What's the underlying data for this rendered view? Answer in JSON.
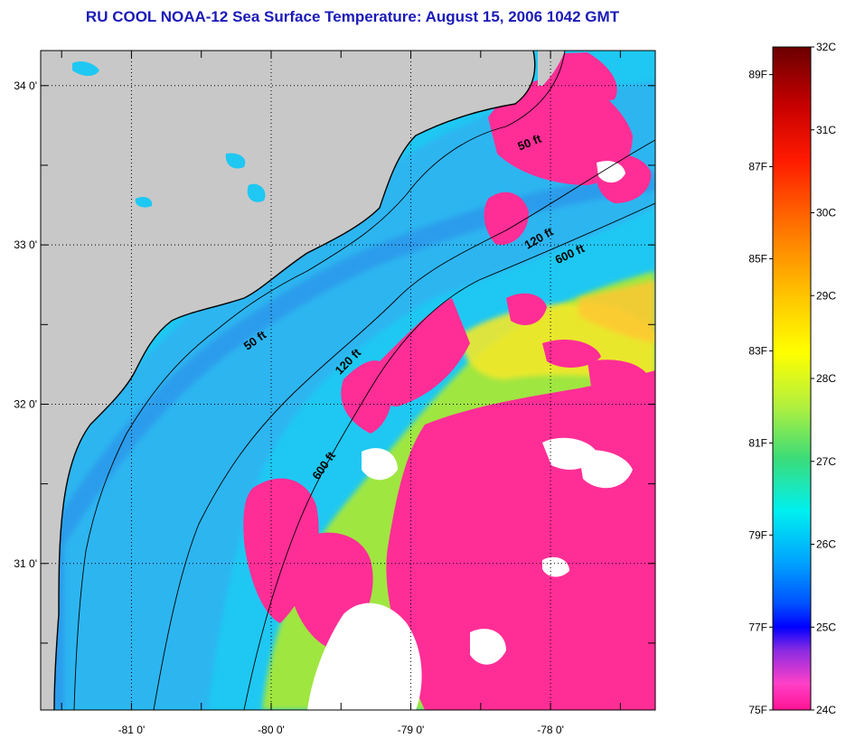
{
  "title": "RU COOL  NOAA-12  Sea Surface Temperature:  August 15, 2006 1042 GMT",
  "map": {
    "lat_labels": [
      "34 0'",
      "33 0'",
      "32 0'",
      "31 0'"
    ],
    "lon_labels": [
      "-81 0'",
      "-80 0'",
      "-79 0'",
      "-78 0'"
    ],
    "lat_values": [
      34,
      33,
      32,
      31
    ],
    "lon_values": [
      -81,
      -80,
      -79,
      -78
    ],
    "lon_range": [
      -81.65,
      -77.25
    ],
    "lat_range": [
      30.08,
      34.22
    ],
    "contours": [
      {
        "label": "50 ft",
        "lon": -78.14,
        "lat": 33.62
      },
      {
        "label": "120 ft",
        "lon": -78.07,
        "lat": 33.02
      },
      {
        "label": "600 ft",
        "lon": -77.85,
        "lat": 32.92
      },
      {
        "label": "50 ft",
        "lon": -80.1,
        "lat": 32.38
      },
      {
        "label": "120 ft",
        "lon": -79.43,
        "lat": 32.25
      },
      {
        "label": "600 ft",
        "lon": -79.6,
        "lat": 31.6
      }
    ],
    "colors": {
      "land": "#c8c8c8",
      "cloud": "#ff2e96",
      "missing": "#ffffff",
      "shelf": "#19c6f5",
      "warm": "#aeea2f"
    }
  },
  "colorbar": {
    "fahrenheit_labels": [
      "89F",
      "87F",
      "85F",
      "83F",
      "81F",
      "79F",
      "77F",
      "75F"
    ],
    "celsius_labels": [
      "32C",
      "31C",
      "30C",
      "29C",
      "28C",
      "27C",
      "26C",
      "25C",
      "24C"
    ],
    "gradient": [
      "#6b0000",
      "#c80000",
      "#ff1a00",
      "#ff7a00",
      "#ffc800",
      "#ffff00",
      "#b4f03c",
      "#3cdc78",
      "#00f0f0",
      "#00a0ff",
      "#0050ff",
      "#0000ff",
      "#8a2be2",
      "#ff40c8",
      "#ff1493"
    ]
  }
}
